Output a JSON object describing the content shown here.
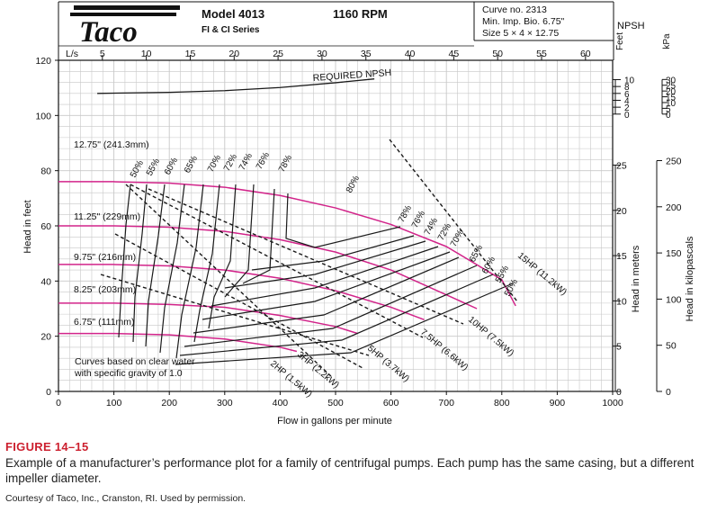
{
  "header": {
    "logo_text": "Taco",
    "model": "Model 4013",
    "series": "FI & CI Series",
    "rpm": "1160 RPM",
    "curve_no": "Curve no. 2313",
    "min_imp": "Min. Imp. Bio. 6.75\"",
    "size": "Size 5 × 4 × 12.75"
  },
  "chart_data": {
    "type": "line",
    "xlabel": "Flow in gallons per minute",
    "ylabel": "Head in feet",
    "xlim": [
      0,
      1000
    ],
    "ylim": [
      0,
      120
    ],
    "x_ticks": [
      0,
      100,
      200,
      300,
      400,
      500,
      600,
      700,
      800,
      900,
      1000
    ],
    "y_ticks": [
      0,
      20,
      40,
      60,
      80,
      100,
      120
    ],
    "top_axis": {
      "label": "L/s",
      "ticks": [
        5,
        10,
        15,
        20,
        25,
        30,
        35,
        40,
        45,
        50,
        55,
        60
      ]
    },
    "npsh_axis": {
      "title": "NPSH",
      "feet_label": "Feet",
      "kpa_label": "kPa",
      "feet_ticks": [
        0,
        2,
        4,
        6,
        8,
        10
      ],
      "kpa_ticks": [
        0,
        5,
        10,
        15,
        20,
        25,
        30
      ]
    },
    "meters_axis": {
      "label": "Head in meters",
      "ticks": [
        0,
        5,
        10,
        15,
        20,
        25
      ]
    },
    "kpa_axis": {
      "label": "Head in kilopascals",
      "ticks": [
        0,
        50,
        100,
        150,
        200,
        250
      ]
    },
    "impeller_curves": [
      {
        "name": "12.75\" (241.3mm)",
        "x": [
          0,
          100,
          200,
          300,
          400,
          500,
          600,
          700,
          800,
          825
        ],
        "y": [
          76,
          76,
          75.5,
          74,
          71,
          66.5,
          60.5,
          52.5,
          40.5,
          31
        ]
      },
      {
        "name": "11.25\" (229mm)",
        "x": [
          0,
          100,
          200,
          300,
          400,
          500,
          600,
          700,
          755
        ],
        "y": [
          60,
          60,
          59.5,
          58,
          55,
          50.5,
          44,
          35,
          30
        ]
      },
      {
        "name": "9.75\" (216mm)",
        "x": [
          0,
          100,
          200,
          300,
          400,
          500,
          600,
          660
        ],
        "y": [
          46,
          46,
          45.5,
          44,
          41,
          36.5,
          30.5,
          26
        ]
      },
      {
        "name": "8.25\" (203mm)",
        "x": [
          0,
          100,
          200,
          300,
          400,
          500,
          540
        ],
        "y": [
          32,
          32,
          31.5,
          30.5,
          27.5,
          23.5,
          21
        ]
      },
      {
        "name": "6.75\" (111mm)",
        "x": [
          0,
          100,
          200,
          300,
          400,
          430
        ],
        "y": [
          21,
          21,
          20.5,
          19,
          16,
          14.5
        ]
      }
    ],
    "npsh_curve": {
      "name": "REQUIRED NPSH",
      "x": [
        70,
        200,
        300,
        400,
        500,
        570
      ],
      "y_ft": [
        6,
        6.3,
        6.8,
        7.7,
        9.1,
        10.2
      ]
    },
    "efficiency_labels": [
      "50%",
      "55%",
      "60%",
      "65%",
      "70%",
      "72%",
      "74%",
      "76%",
      "78%",
      "80%",
      "78%",
      "76%",
      "74%",
      "72%",
      "70%",
      "65%",
      "60%",
      "55%",
      "50%"
    ],
    "power_labels": [
      "2HP (1.5kW)",
      "3HP (2.2kW)",
      "5HP (3.7kW)",
      "7.5HP (6.6kW)",
      "10HP (7.5kW)",
      "15HP (11.2kW)"
    ],
    "note": [
      "Curves based on clear water",
      "with specific gravity of 1.0"
    ]
  },
  "caption": {
    "label": "FIGURE 14–15",
    "text": "Example of a manufacturer’s performance plot for a family of centrifugal pumps. Each pump has the same casing, but a different impeller diameter.",
    "credit": "Courtesy of Taco, Inc., Cranston, RI. Used by permission."
  },
  "colors": {
    "impeller": "#d2248a",
    "curve": "#1a1a1a",
    "grid": "#c8c8c8",
    "figure_label": "#cc1f2e"
  }
}
